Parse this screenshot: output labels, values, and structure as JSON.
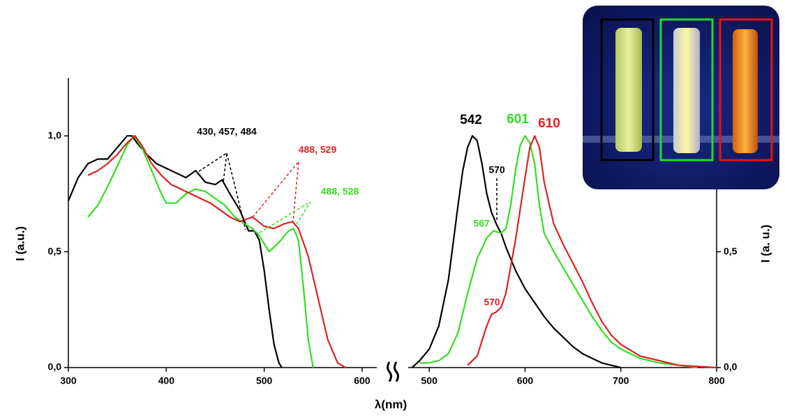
{
  "chart_data": [
    {
      "type": "line",
      "xlabel": "λ(nm)",
      "ylabel": "I (a.u.)",
      "xlim": [
        300,
        615
      ],
      "xticks": [
        300,
        400,
        500,
        600
      ],
      "ylim": [
        0,
        1.25
      ],
      "yticks": [
        {
          "value": 0,
          "label": "0,0"
        },
        {
          "value": 0.5,
          "label": "0,5"
        },
        {
          "value": 1,
          "label": "1,0"
        }
      ],
      "grid": false,
      "series": [
        {
          "color": "#000000",
          "x": [
            300,
            310,
            320,
            330,
            340,
            350,
            360,
            365,
            370,
            380,
            390,
            400,
            410,
            420,
            430,
            440,
            450,
            457,
            465,
            475,
            484,
            490,
            495,
            500,
            505,
            510,
            515,
            518
          ],
          "values": [
            0.72,
            0.82,
            0.88,
            0.9,
            0.9,
            0.95,
            1.0,
            1.0,
            0.97,
            0.92,
            0.88,
            0.86,
            0.84,
            0.82,
            0.85,
            0.8,
            0.79,
            0.81,
            0.75,
            0.68,
            0.59,
            0.59,
            0.55,
            0.42,
            0.25,
            0.1,
            0.02,
            0
          ]
        },
        {
          "color": "#33dd22",
          "x": [
            320,
            330,
            340,
            350,
            360,
            367,
            375,
            385,
            395,
            400,
            410,
            420,
            430,
            440,
            450,
            460,
            470,
            480,
            488,
            495,
            505,
            515,
            525,
            530,
            535,
            540,
            545,
            550
          ],
          "values": [
            0.65,
            0.7,
            0.78,
            0.87,
            0.96,
            1.0,
            0.95,
            0.85,
            0.75,
            0.71,
            0.71,
            0.75,
            0.77,
            0.76,
            0.73,
            0.7,
            0.65,
            0.62,
            0.6,
            0.57,
            0.5,
            0.54,
            0.59,
            0.6,
            0.55,
            0.35,
            0.12,
            0
          ]
        },
        {
          "color": "#dd2222",
          "x": [
            320,
            330,
            340,
            350,
            360,
            368,
            375,
            385,
            395,
            405,
            415,
            425,
            435,
            445,
            455,
            465,
            475,
            488,
            500,
            510,
            520,
            529,
            535,
            545,
            555,
            565,
            575,
            583
          ],
          "values": [
            0.83,
            0.85,
            0.88,
            0.92,
            0.97,
            1.0,
            0.96,
            0.88,
            0.83,
            0.79,
            0.77,
            0.75,
            0.73,
            0.71,
            0.68,
            0.65,
            0.63,
            0.65,
            0.61,
            0.6,
            0.62,
            0.63,
            0.6,
            0.48,
            0.3,
            0.12,
            0.02,
            0
          ]
        }
      ],
      "annotations": [
        {
          "text": "430, 457, 484",
          "color": "#000000"
        },
        {
          "text": "488, 529",
          "color": "#dd2222"
        },
        {
          "text": "488, 528",
          "color": "#33dd22"
        }
      ]
    },
    {
      "type": "line",
      "ylabel": "I (a. u.)",
      "xlim": [
        478,
        800
      ],
      "xticks": [
        500,
        600,
        700,
        800
      ],
      "ylim": [
        0,
        1.25
      ],
      "yticks": [
        {
          "value": 0,
          "label": "0,0"
        },
        {
          "value": 0.5,
          "label": "0,5"
        }
      ],
      "grid": false,
      "series": [
        {
          "color": "#000000",
          "x": [
            482,
            490,
            500,
            510,
            520,
            530,
            535,
            540,
            545,
            550,
            555,
            560,
            565,
            570,
            575,
            580,
            590,
            600,
            610,
            620,
            630,
            640,
            650,
            660,
            670,
            680,
            690,
            700
          ],
          "values": [
            0,
            0.03,
            0.08,
            0.18,
            0.38,
            0.7,
            0.85,
            0.95,
            1.0,
            0.98,
            0.88,
            0.75,
            0.67,
            0.62,
            0.58,
            0.52,
            0.42,
            0.34,
            0.28,
            0.22,
            0.17,
            0.13,
            0.09,
            0.06,
            0.04,
            0.02,
            0.01,
            0
          ]
        },
        {
          "color": "#33dd22",
          "x": [
            490,
            500,
            510,
            520,
            530,
            540,
            550,
            560,
            567,
            575,
            580,
            585,
            590,
            595,
            600,
            605,
            610,
            615,
            620,
            630,
            640,
            650,
            660,
            670,
            680,
            690,
            700,
            720,
            740,
            760,
            780
          ],
          "values": [
            0.02,
            0.02,
            0.03,
            0.06,
            0.15,
            0.32,
            0.47,
            0.56,
            0.59,
            0.58,
            0.6,
            0.7,
            0.85,
            0.96,
            1.0,
            0.97,
            0.88,
            0.7,
            0.58,
            0.5,
            0.43,
            0.36,
            0.29,
            0.22,
            0.16,
            0.11,
            0.08,
            0.04,
            0.02,
            0.01,
            0
          ]
        },
        {
          "color": "#dd2222",
          "x": [
            540,
            550,
            560,
            565,
            570,
            575,
            580,
            590,
            600,
            605,
            610,
            615,
            620,
            630,
            640,
            650,
            660,
            670,
            680,
            690,
            700,
            720,
            740,
            760,
            780,
            800
          ],
          "values": [
            0.01,
            0.05,
            0.18,
            0.23,
            0.24,
            0.26,
            0.32,
            0.55,
            0.82,
            0.95,
            1.0,
            0.95,
            0.8,
            0.62,
            0.53,
            0.45,
            0.37,
            0.28,
            0.2,
            0.14,
            0.1,
            0.05,
            0.03,
            0.01,
            0.005,
            0
          ]
        }
      ],
      "annotations": [
        {
          "text": "542",
          "color": "#000000"
        },
        {
          "text": "601",
          "color": "#33dd22"
        },
        {
          "text": "610",
          "color": "#dd2222"
        },
        {
          "text": "570",
          "color": "#000000"
        },
        {
          "text": "567",
          "color": "#33dd22"
        },
        {
          "text": "570",
          "color": "#dd2222"
        }
      ]
    }
  ]
}
